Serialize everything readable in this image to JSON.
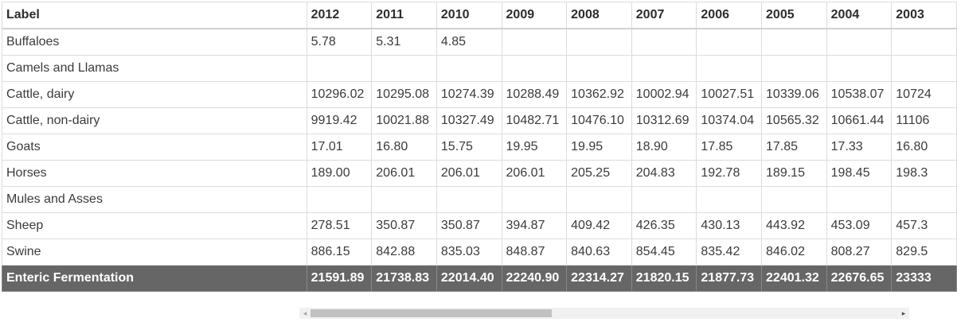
{
  "header": {
    "label": "Label",
    "years": [
      "2012",
      "2011",
      "2010",
      "2009",
      "2008",
      "2007",
      "2006",
      "2005",
      "2004",
      "2003"
    ]
  },
  "rows": [
    {
      "label": "Buffaloes",
      "values": [
        "5.78",
        "5.31",
        "4.85",
        "",
        "",
        "",
        "",
        "",
        "",
        ""
      ]
    },
    {
      "label": "Camels and Llamas",
      "values": [
        "",
        "",
        "",
        "",
        "",
        "",
        "",
        "",
        "",
        ""
      ]
    },
    {
      "label": "Cattle, dairy",
      "values": [
        "10296.02",
        "10295.08",
        "10274.39",
        "10288.49",
        "10362.92",
        "10002.94",
        "10027.51",
        "10339.06",
        "10538.07",
        "10724"
      ]
    },
    {
      "label": "Cattle, non-dairy",
      "values": [
        "9919.42",
        "10021.88",
        "10327.49",
        "10482.71",
        "10476.10",
        "10312.69",
        "10374.04",
        "10565.32",
        "10661.44",
        "11106"
      ]
    },
    {
      "label": "Goats",
      "values": [
        "17.01",
        "16.80",
        "15.75",
        "19.95",
        "19.95",
        "18.90",
        "17.85",
        "17.85",
        "17.33",
        "16.80"
      ]
    },
    {
      "label": "Horses",
      "values": [
        "189.00",
        "206.01",
        "206.01",
        "206.01",
        "205.25",
        "204.83",
        "192.78",
        "189.15",
        "198.45",
        "198.3"
      ]
    },
    {
      "label": "Mules and Asses",
      "values": [
        "",
        "",
        "",
        "",
        "",
        "",
        "",
        "",
        "",
        ""
      ]
    },
    {
      "label": "Sheep",
      "values": [
        "278.51",
        "350.87",
        "350.87",
        "394.87",
        "409.42",
        "426.35",
        "430.13",
        "443.92",
        "453.09",
        "457.3"
      ]
    },
    {
      "label": "Swine",
      "values": [
        "886.15",
        "842.88",
        "835.03",
        "848.87",
        "840.63",
        "854.45",
        "835.42",
        "846.02",
        "808.27",
        "829.5"
      ]
    }
  ],
  "total": {
    "label": "Enteric Fermentation",
    "values": [
      "21591.89",
      "21738.83",
      "22014.40",
      "22240.90",
      "22314.27",
      "21820.15",
      "21877.73",
      "22401.32",
      "22676.65",
      "23333"
    ]
  },
  "scrollbar": {
    "left_arrow": "◂",
    "right_arrow": "▸",
    "thumb_fraction": 0.41
  }
}
